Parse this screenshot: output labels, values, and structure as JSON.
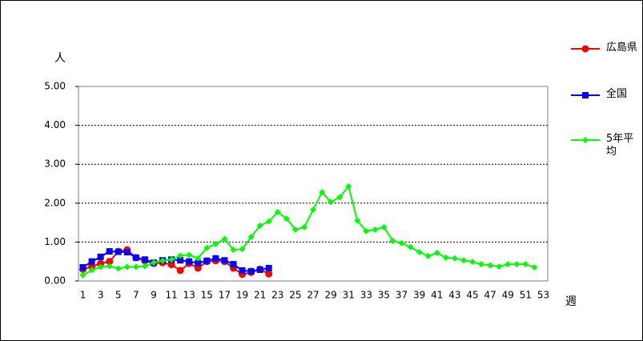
{
  "chart_data": {
    "type": "line",
    "y_label": "人",
    "x_label": "週",
    "categories": [
      "1",
      null,
      "3",
      null,
      "5",
      null,
      "7",
      null,
      "9",
      null,
      "11",
      null,
      "13",
      null,
      "15",
      null,
      "17",
      null,
      "19",
      null,
      "21",
      null,
      "23",
      null,
      "25",
      null,
      "27",
      null,
      "29",
      null,
      "31",
      null,
      "33",
      null,
      "35",
      null,
      "37",
      null,
      "39",
      null,
      "41",
      null,
      "43",
      null,
      "45",
      null,
      "47",
      null,
      "49",
      null,
      "51",
      null,
      "53"
    ],
    "series": [
      {
        "name": "広島県",
        "color": "#ff0000",
        "marker": "circle",
        "values": [
          0.3,
          0.37,
          0.45,
          0.5,
          0.76,
          0.8,
          0.6,
          0.52,
          0.45,
          0.47,
          0.42,
          0.27,
          0.45,
          0.33,
          0.5,
          0.52,
          0.5,
          0.33,
          0.17,
          0.22,
          0.3,
          0.18,
          null,
          null,
          null,
          null,
          null,
          null,
          null,
          null,
          null,
          null,
          null,
          null,
          null,
          null,
          null,
          null,
          null,
          null,
          null,
          null,
          null,
          null,
          null,
          null,
          null,
          null,
          null,
          null,
          null,
          null,
          null
        ]
      },
      {
        "name": "全国",
        "color": "#0000ff",
        "marker": "square",
        "values": [
          0.35,
          0.5,
          0.62,
          0.76,
          0.75,
          0.74,
          0.6,
          0.55,
          0.47,
          0.53,
          0.55,
          0.53,
          0.5,
          0.46,
          0.52,
          0.58,
          0.53,
          0.43,
          0.27,
          0.25,
          0.29,
          0.33,
          null,
          null,
          null,
          null,
          null,
          null,
          null,
          null,
          null,
          null,
          null,
          null,
          null,
          null,
          null,
          null,
          null,
          null,
          null,
          null,
          null,
          null,
          null,
          null,
          null,
          null,
          null,
          null,
          null,
          null,
          null
        ]
      },
      {
        "name": "5年平均",
        "color": "#00ff00",
        "marker": "diamond",
        "values": [
          0.15,
          0.28,
          0.36,
          0.38,
          0.32,
          0.36,
          0.36,
          0.38,
          0.47,
          0.52,
          0.55,
          0.65,
          0.67,
          0.58,
          0.85,
          0.95,
          1.08,
          0.8,
          0.82,
          1.13,
          1.42,
          1.53,
          1.77,
          1.6,
          1.32,
          1.38,
          1.83,
          2.28,
          2.03,
          2.15,
          2.43,
          1.55,
          1.28,
          1.32,
          1.38,
          1.03,
          0.97,
          0.87,
          0.74,
          0.64,
          0.72,
          0.6,
          0.58,
          0.53,
          0.49,
          0.43,
          0.4,
          0.37,
          0.43,
          0.43,
          0.43,
          0.35,
          null
        ]
      }
    ],
    "ylim": [
      0,
      5
    ],
    "yticks": [
      {
        "value": 0,
        "label": "0.00"
      },
      {
        "value": 1,
        "label": "1.00"
      },
      {
        "value": 2,
        "label": "2.00"
      },
      {
        "value": 3,
        "label": "3.00"
      },
      {
        "value": 4,
        "label": "4.00"
      },
      {
        "value": 5,
        "label": "5.00"
      }
    ],
    "grid": true
  }
}
